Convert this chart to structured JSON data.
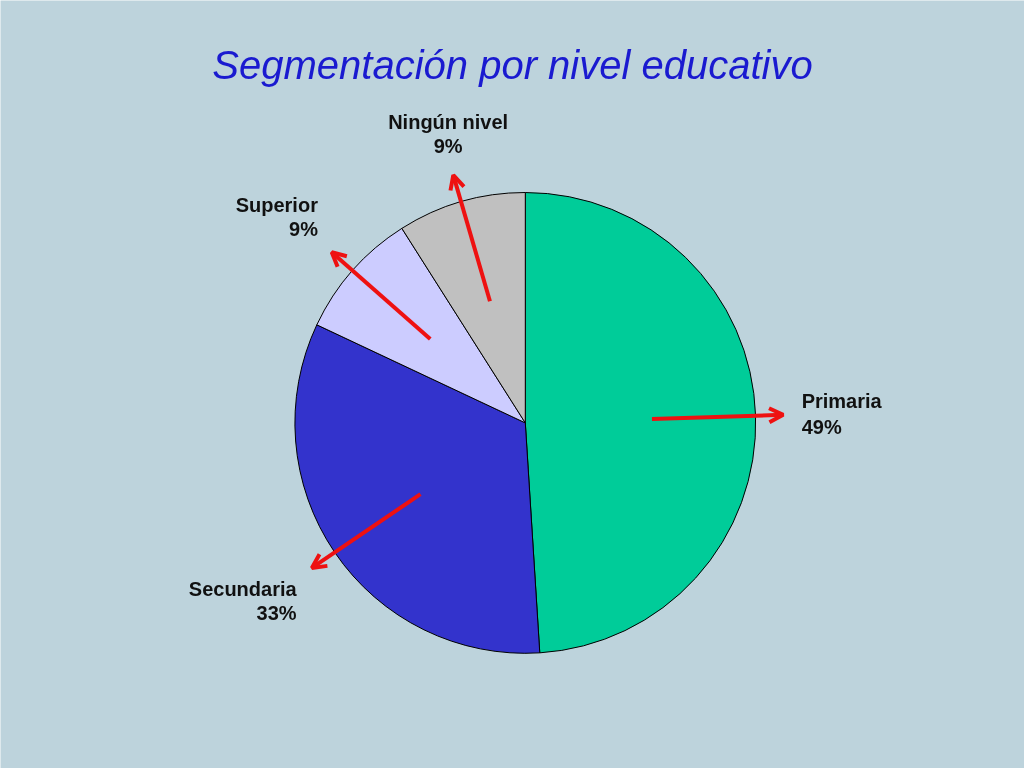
{
  "chart_data": {
    "type": "pie",
    "title": "Segmentación por nivel educativo",
    "categories": [
      "Primaria",
      "Secundaria",
      "Superior",
      "Ningún nivel"
    ],
    "values": [
      49,
      33,
      9,
      9
    ],
    "colors": [
      "#00cc99",
      "#3333cc",
      "#ccccff",
      "#c0c0c0"
    ],
    "value_labels": [
      "49%",
      "33%",
      "9%",
      "9%"
    ]
  }
}
